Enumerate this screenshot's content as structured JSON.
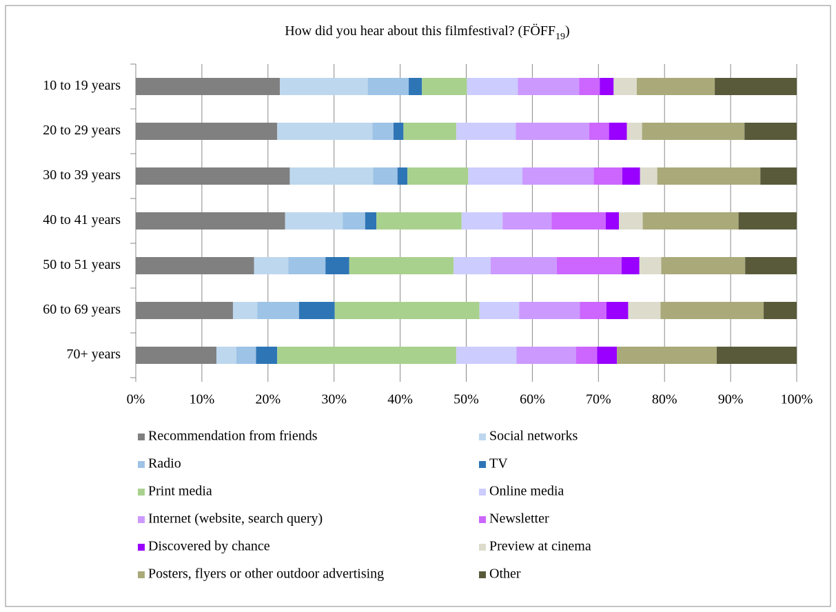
{
  "chart_data": {
    "type": "stacked_barh",
    "title": [
      "How did you hear about this filmfestival? (FÖFF",
      "19",
      ")"
    ],
    "categories": [
      "10 to 19 years",
      "20 to 29 years",
      "30 to 39 years",
      "40 to 41 years",
      "50 to 51 years",
      "60 to 69 years",
      "70+ years"
    ],
    "xlim": [
      0,
      100
    ],
    "xticks": [
      {
        "value": 0,
        "label": "0%"
      },
      {
        "value": 10,
        "label": "10%"
      },
      {
        "value": 20,
        "label": "20%"
      },
      {
        "value": 30,
        "label": "30%"
      },
      {
        "value": 40,
        "label": "40%"
      },
      {
        "value": 50,
        "label": "50%"
      },
      {
        "value": 60,
        "label": "60%"
      },
      {
        "value": 70,
        "label": "70%"
      },
      {
        "value": 80,
        "label": "80%"
      },
      {
        "value": 90,
        "label": "90%"
      },
      {
        "value": 100,
        "label": "100%"
      }
    ],
    "grid": true,
    "legend": "bottom",
    "series": [
      {
        "name": "Recommendation from friends",
        "color": "#808080",
        "values": [
          21.8,
          21.4,
          23.3,
          22.6,
          17.9,
          14.7,
          12.2
        ]
      },
      {
        "name": "Social networks",
        "color": "#bdd7ee",
        "values": [
          13.3,
          14.4,
          12.6,
          8.7,
          5.2,
          3.7,
          3.0
        ]
      },
      {
        "name": "Radio",
        "color": "#9dc3e6",
        "values": [
          6.2,
          3.2,
          3.7,
          3.4,
          5.6,
          6.3,
          3.0
        ]
      },
      {
        "name": "TV",
        "color": "#2e75b6",
        "values": [
          2.0,
          1.5,
          1.5,
          1.7,
          3.6,
          5.4,
          3.2
        ]
      },
      {
        "name": "Print media",
        "color": "#a9d18e",
        "values": [
          6.8,
          8.0,
          9.2,
          12.9,
          15.8,
          21.9,
          27.1
        ]
      },
      {
        "name": "Online media",
        "color": "#ccccff",
        "values": [
          7.7,
          9.0,
          8.2,
          6.2,
          5.6,
          6.0,
          9.1
        ]
      },
      {
        "name": "Internet (website, search query)",
        "color": "#cc99ff",
        "values": [
          9.3,
          11.1,
          10.8,
          7.4,
          10.0,
          9.2,
          9.0
        ]
      },
      {
        "name": "Newsletter",
        "color": "#cc66ff",
        "values": [
          3.1,
          3.0,
          4.3,
          8.2,
          9.8,
          4.0,
          3.2
        ]
      },
      {
        "name": "Discovered by chance",
        "color": "#9900ff",
        "values": [
          2.1,
          2.7,
          2.7,
          2.0,
          2.7,
          3.3,
          3.0
        ]
      },
      {
        "name": "Preview at cinema",
        "color": "#dddccc",
        "values": [
          3.5,
          2.3,
          2.6,
          3.6,
          3.3,
          4.9,
          0
        ]
      },
      {
        "name": "Posters, flyers or other outdoor advertising",
        "color": "#a9a97a",
        "values": [
          11.8,
          15.5,
          15.6,
          14.5,
          12.7,
          15.6,
          15.1
        ]
      },
      {
        "name": "Other",
        "color": "#595a3a",
        "values": [
          12.4,
          7.9,
          5.5,
          8.8,
          7.8,
          5.0,
          12.1
        ]
      }
    ]
  }
}
